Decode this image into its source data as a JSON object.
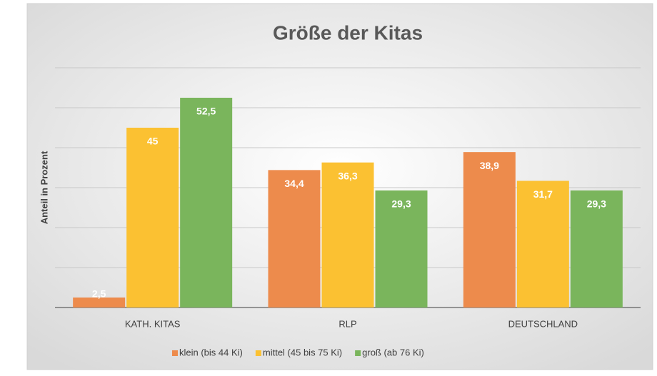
{
  "chart_data": {
    "type": "bar",
    "title": "Größe der Kitas",
    "y_label": "Anteil in Prozent",
    "categories": [
      "KATH. KITAS",
      "RLP",
      "DEUTSCHLAND"
    ],
    "series": [
      {
        "name": "klein (bis 44 Ki)",
        "color": "#ed8b4c",
        "values": [
          2.5,
          34.4,
          38.9
        ],
        "value_labels": [
          "2,5",
          "34,4",
          "38,9"
        ]
      },
      {
        "name": "mittel (45 bis 75 Ki)",
        "color": "#fbc132",
        "values": [
          45,
          36.3,
          31.7
        ],
        "value_labels": [
          "45",
          "36,3",
          "31,7"
        ]
      },
      {
        "name": "groß (ab 76 Ki)",
        "color": "#7ab55c",
        "values": [
          52.5,
          29.3,
          29.3
        ],
        "value_labels": [
          "52,5",
          "29,3",
          "29,3"
        ]
      }
    ],
    "ylim": [
      0,
      60
    ],
    "yticks": [
      0,
      10,
      20,
      30,
      40,
      50,
      60
    ],
    "grid": true
  }
}
